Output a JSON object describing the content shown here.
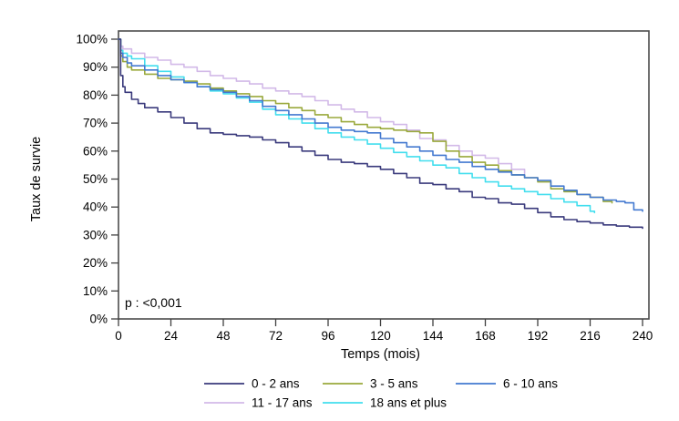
{
  "chart_data": {
    "type": "line",
    "subtype": "kaplan-meier-step-survival",
    "title": "",
    "xlabel": "Temps (mois)",
    "ylabel": "Taux de survie",
    "annotation": "p : <0,001",
    "xlim": [
      0,
      240
    ],
    "ylim": [
      0,
      100
    ],
    "x_ticks": [
      0,
      24,
      48,
      72,
      96,
      120,
      144,
      168,
      192,
      216,
      240
    ],
    "y_ticks": [
      0,
      10,
      20,
      30,
      40,
      50,
      60,
      70,
      80,
      90,
      100
    ],
    "y_tick_suffix": "%",
    "grid": false,
    "legend_position": "bottom",
    "axis_color": "#4d4d4d",
    "series": [
      {
        "name": "0 - 2 ans",
        "color": "#3a3a7c",
        "points": [
          [
            0,
            100
          ],
          [
            1,
            87
          ],
          [
            2,
            83
          ],
          [
            3,
            81
          ],
          [
            6,
            78.5
          ],
          [
            9,
            77
          ],
          [
            12,
            75.5
          ],
          [
            18,
            74
          ],
          [
            24,
            72
          ],
          [
            30,
            70
          ],
          [
            36,
            68
          ],
          [
            42,
            66.5
          ],
          [
            48,
            66
          ],
          [
            54,
            65.5
          ],
          [
            60,
            65
          ],
          [
            66,
            64
          ],
          [
            72,
            63
          ],
          [
            78,
            61.5
          ],
          [
            84,
            60
          ],
          [
            90,
            58.5
          ],
          [
            96,
            57
          ],
          [
            102,
            56
          ],
          [
            108,
            55.5
          ],
          [
            114,
            54.5
          ],
          [
            120,
            53.5
          ],
          [
            126,
            52
          ],
          [
            132,
            50.5
          ],
          [
            138,
            48.5
          ],
          [
            144,
            48
          ],
          [
            150,
            46.5
          ],
          [
            156,
            45.5
          ],
          [
            162,
            43.5
          ],
          [
            168,
            43
          ],
          [
            174,
            41.5
          ],
          [
            180,
            41
          ],
          [
            186,
            39.5
          ],
          [
            192,
            38
          ],
          [
            198,
            36.5
          ],
          [
            204,
            35.5
          ],
          [
            210,
            34.8
          ],
          [
            216,
            34.3
          ],
          [
            222,
            33.6
          ],
          [
            228,
            33.2
          ],
          [
            234,
            32.8
          ],
          [
            240,
            32.4
          ]
        ]
      },
      {
        "name": "3 - 5 ans",
        "color": "#9aa93c",
        "points": [
          [
            0,
            100
          ],
          [
            1,
            94
          ],
          [
            2,
            92
          ],
          [
            4,
            90
          ],
          [
            6,
            89
          ],
          [
            12,
            87.5
          ],
          [
            18,
            86
          ],
          [
            24,
            85.5
          ],
          [
            30,
            85
          ],
          [
            36,
            84
          ],
          [
            42,
            82.5
          ],
          [
            48,
            81.5
          ],
          [
            54,
            80.5
          ],
          [
            60,
            79.5
          ],
          [
            66,
            78
          ],
          [
            72,
            77
          ],
          [
            78,
            75.5
          ],
          [
            84,
            74.5
          ],
          [
            90,
            73
          ],
          [
            96,
            72
          ],
          [
            102,
            70.5
          ],
          [
            108,
            69.5
          ],
          [
            114,
            68.5
          ],
          [
            120,
            68
          ],
          [
            126,
            67.5
          ],
          [
            132,
            67
          ],
          [
            138,
            66.5
          ],
          [
            144,
            63.5
          ],
          [
            150,
            60
          ],
          [
            156,
            58
          ],
          [
            162,
            56
          ],
          [
            168,
            55
          ],
          [
            174,
            53
          ],
          [
            180,
            51.5
          ],
          [
            186,
            50.5
          ],
          [
            192,
            49
          ],
          [
            198,
            46.5
          ],
          [
            204,
            45.5
          ],
          [
            210,
            44.5
          ],
          [
            216,
            43.5
          ],
          [
            222,
            42
          ],
          [
            226,
            41.5
          ]
        ]
      },
      {
        "name": "6 - 10 ans",
        "color": "#4379d0",
        "points": [
          [
            0,
            100
          ],
          [
            1,
            95
          ],
          [
            2,
            93.5
          ],
          [
            4,
            91.5
          ],
          [
            6,
            90.5
          ],
          [
            12,
            89
          ],
          [
            18,
            87
          ],
          [
            24,
            85.5
          ],
          [
            30,
            84.5
          ],
          [
            36,
            83
          ],
          [
            42,
            82
          ],
          [
            48,
            81
          ],
          [
            54,
            79.5
          ],
          [
            60,
            78
          ],
          [
            66,
            76
          ],
          [
            72,
            74.5
          ],
          [
            78,
            73
          ],
          [
            84,
            71.5
          ],
          [
            90,
            70
          ],
          [
            96,
            68.5
          ],
          [
            102,
            67.5
          ],
          [
            108,
            67
          ],
          [
            114,
            66.5
          ],
          [
            120,
            64.5
          ],
          [
            126,
            63
          ],
          [
            132,
            61.5
          ],
          [
            138,
            60
          ],
          [
            144,
            58.5
          ],
          [
            150,
            57
          ],
          [
            156,
            56
          ],
          [
            162,
            54.5
          ],
          [
            168,
            53.5
          ],
          [
            174,
            52.5
          ],
          [
            180,
            51.5
          ],
          [
            186,
            50.5
          ],
          [
            192,
            49.5
          ],
          [
            198,
            47.5
          ],
          [
            204,
            46
          ],
          [
            210,
            44.5
          ],
          [
            216,
            43.5
          ],
          [
            222,
            42.5
          ],
          [
            228,
            42
          ],
          [
            232,
            41.5
          ],
          [
            236,
            39
          ],
          [
            240,
            38.5
          ]
        ]
      },
      {
        "name": "11 - 17 ans",
        "color": "#d2b9e8",
        "points": [
          [
            0,
            100
          ],
          [
            1,
            97.5
          ],
          [
            2,
            96.5
          ],
          [
            6,
            95
          ],
          [
            12,
            93.5
          ],
          [
            18,
            92.5
          ],
          [
            24,
            91
          ],
          [
            30,
            90
          ],
          [
            36,
            88.5
          ],
          [
            42,
            87
          ],
          [
            48,
            86
          ],
          [
            54,
            85
          ],
          [
            60,
            84
          ],
          [
            66,
            82.5
          ],
          [
            72,
            81.5
          ],
          [
            78,
            80.5
          ],
          [
            84,
            79.5
          ],
          [
            90,
            78
          ],
          [
            96,
            76.5
          ],
          [
            102,
            75
          ],
          [
            108,
            74
          ],
          [
            114,
            72
          ],
          [
            120,
            70.5
          ],
          [
            126,
            69.5
          ],
          [
            132,
            67.5
          ],
          [
            138,
            64.5
          ],
          [
            144,
            64
          ],
          [
            150,
            62
          ],
          [
            156,
            60
          ],
          [
            162,
            58.5
          ],
          [
            168,
            57.5
          ],
          [
            174,
            55.5
          ],
          [
            180,
            53.5
          ],
          [
            186,
            52
          ]
        ]
      },
      {
        "name": "18 ans et plus",
        "color": "#42deee",
        "points": [
          [
            0,
            100
          ],
          [
            1,
            96
          ],
          [
            2,
            95
          ],
          [
            4,
            94
          ],
          [
            6,
            93
          ],
          [
            12,
            90.5
          ],
          [
            18,
            88.5
          ],
          [
            24,
            86.5
          ],
          [
            30,
            84.5
          ],
          [
            36,
            83
          ],
          [
            42,
            81.5
          ],
          [
            48,
            80.5
          ],
          [
            54,
            79
          ],
          [
            60,
            77.5
          ],
          [
            66,
            75
          ],
          [
            72,
            73
          ],
          [
            78,
            71.5
          ],
          [
            84,
            70
          ],
          [
            90,
            68
          ],
          [
            96,
            66.5
          ],
          [
            102,
            65
          ],
          [
            108,
            64
          ],
          [
            114,
            62.5
          ],
          [
            120,
            61
          ],
          [
            126,
            59.5
          ],
          [
            132,
            58
          ],
          [
            138,
            56.5
          ],
          [
            144,
            55
          ],
          [
            150,
            54
          ],
          [
            156,
            52
          ],
          [
            162,
            50.5
          ],
          [
            168,
            49
          ],
          [
            174,
            47.5
          ],
          [
            180,
            46.5
          ],
          [
            186,
            45.5
          ],
          [
            192,
            44.5
          ],
          [
            198,
            43
          ],
          [
            204,
            41.8
          ],
          [
            210,
            40.5
          ],
          [
            216,
            38.5
          ],
          [
            218,
            38
          ]
        ]
      }
    ],
    "legend": {
      "rows": [
        [
          "0 - 2 ans",
          "3 - 5 ans",
          "6 - 10 ans"
        ],
        [
          "11 - 17 ans",
          "18 ans et plus"
        ]
      ]
    }
  }
}
